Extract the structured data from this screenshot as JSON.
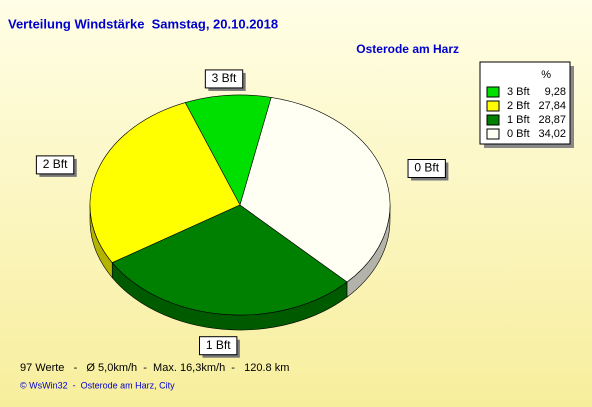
{
  "chart_data": {
    "type": "pie",
    "title": "Verteilung Windstärke  Samstag, 20.10.2018",
    "subtitle": "Osterode am Harz",
    "legend_title": "%",
    "categories": [
      "3 Bft",
      "2 Bft",
      "1 Bft",
      "0 Bft"
    ],
    "values": [
      9.28,
      27.84,
      28.87,
      34.02
    ],
    "value_labels": [
      "9,28",
      "27,84",
      "28,87",
      "34,02"
    ],
    "colors": [
      "#00e000",
      "#ffff00",
      "#008000",
      "#fffff4"
    ],
    "footer": [
      "97 Werte   -   Ø 5,0km/h  -  Max. 16,3km/h  -   120.8 km",
      "© WsWin32  -  Osterode am Harz, City"
    ]
  }
}
